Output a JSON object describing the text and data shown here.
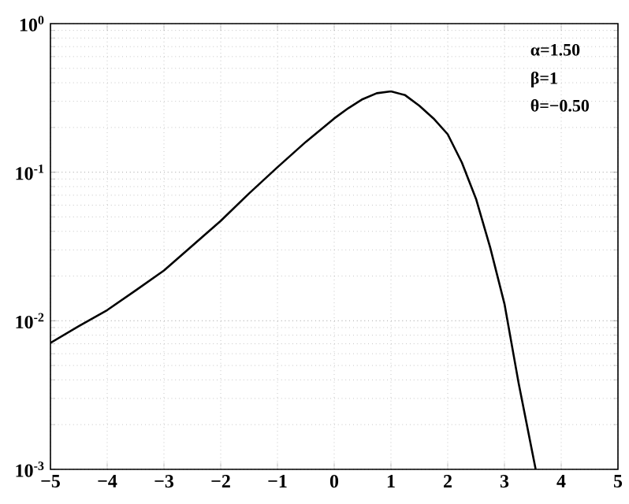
{
  "chart_data": {
    "type": "line",
    "log": "y",
    "grid": true,
    "marker": "none",
    "line_style": "solid",
    "xlim": [
      -5,
      5
    ],
    "xticks": [
      {
        "value": -5,
        "label": "−5"
      },
      {
        "value": -4,
        "label": "−4"
      },
      {
        "value": -3,
        "label": "−3"
      },
      {
        "value": -2,
        "label": "−2"
      },
      {
        "value": -1,
        "label": "−1"
      },
      0,
      1,
      2,
      3,
      4,
      5
    ],
    "ylim": [
      0.001,
      1
    ],
    "yticks": [
      {
        "value": 0.001,
        "label": "10$^{-3}$"
      },
      {
        "value": 0.01,
        "label": "10$^{-2}$"
      },
      {
        "value": 0.1,
        "label": "10$^{-1}$"
      },
      {
        "value": 1,
        "label": "10$^{0}$"
      }
    ],
    "annotations": [
      "α=1.50",
      "β=1",
      "θ=−0.50"
    ],
    "series": [
      {
        "color": "#000000",
        "x": [
          -5,
          -4.5,
          -4,
          -3.5,
          -3,
          -2.5,
          -2,
          -1.5,
          -1,
          -0.5,
          0,
          0.25,
          0.5,
          0.75,
          1,
          1.25,
          1.5,
          1.75,
          2,
          2.25,
          2.5,
          2.75,
          3,
          3.25,
          3.55
        ],
        "values": [
          0.0071,
          0.0092,
          0.0118,
          0.016,
          0.0218,
          0.032,
          0.047,
          0.072,
          0.108,
          0.16,
          0.23,
          0.27,
          0.31,
          0.34,
          0.35,
          0.33,
          0.28,
          0.23,
          0.18,
          0.116,
          0.066,
          0.031,
          0.013,
          0.0038,
          0.001
        ]
      }
    ]
  }
}
